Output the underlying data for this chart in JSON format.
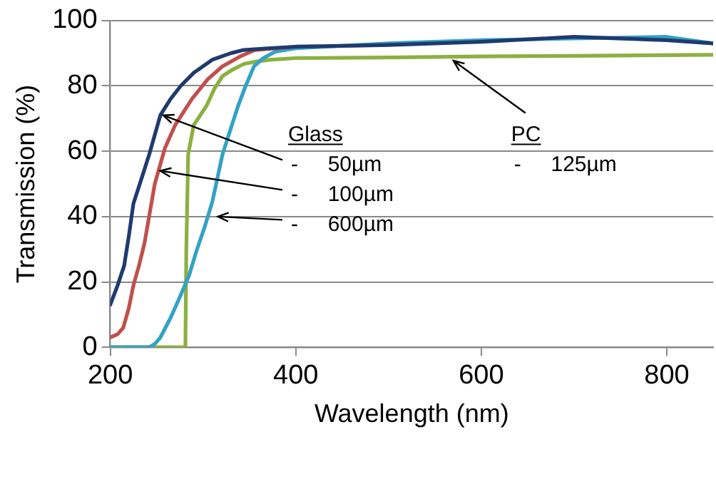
{
  "chart_data": {
    "type": "line",
    "xlabel": "Wavelength (nm)",
    "ylabel": "Transmission (%)",
    "xlim": [
      200,
      850
    ],
    "xticks": [
      200,
      400,
      600,
      800
    ],
    "ylim": [
      0,
      100
    ],
    "yticks": [
      0,
      20,
      40,
      60,
      80,
      100
    ],
    "grid": "y",
    "legend": false,
    "marker": "none",
    "line_style": "solid",
    "annotations": [
      "Glass",
      {
        "text": "-     50µm",
        "x": 254,
        "y": 71
      },
      {
        "text": "-     100µm",
        "x": 251,
        "y": 54
      },
      {
        "text": "-     600µm",
        "x": 313,
        "y": 40
      },
      {
        "text": "PC",
        "x": 567,
        "y": 89
      },
      "-     125µm"
    ],
    "series": [
      {
        "color": "#1f3a6e",
        "x": [
          200,
          208,
          215,
          220,
          225,
          233,
          242,
          254,
          265,
          276,
          290,
          310,
          330,
          344,
          370,
          400,
          500,
          600,
          700,
          800,
          850
        ],
        "values": [
          13,
          19,
          25,
          34,
          44,
          51,
          59,
          71,
          76,
          80,
          84,
          88,
          90,
          91,
          91.5,
          92,
          92.5,
          93.5,
          95,
          94,
          93
        ]
      },
      {
        "color": "#c0504d",
        "x": [
          200,
          208,
          214,
          220,
          225,
          231,
          237,
          248,
          259,
          270,
          288,
          305,
          321,
          340,
          356,
          380,
          400
        ],
        "values": [
          3,
          4,
          6,
          12,
          19,
          25,
          32,
          50,
          61,
          68,
          76,
          82,
          86,
          89,
          91,
          91.5,
          92
        ]
      },
      {
        "color": "#33a2c4",
        "x": [
          200,
          242,
          248,
          254,
          265,
          276,
          285,
          293,
          302,
          310,
          321,
          330,
          338,
          346,
          355,
          365,
          378,
          400,
          500,
          600,
          700,
          800,
          850
        ],
        "values": [
          0,
          0,
          1,
          3,
          9,
          16,
          22,
          29.5,
          37,
          44.5,
          59,
          67,
          74,
          80,
          86,
          88.5,
          90.5,
          91.5,
          93,
          94,
          94.5,
          95,
          93
        ]
      },
      {
        "color": "#8cb040",
        "x": [
          200,
          281,
          282,
          284,
          290,
          297,
          304,
          312,
          321,
          332,
          344,
          358,
          372,
          400,
          500,
          600,
          700,
          800,
          850
        ],
        "values": [
          0,
          0,
          30,
          59,
          68,
          71,
          74,
          79,
          83,
          85,
          86.7,
          87.5,
          88,
          88.5,
          88.7,
          89,
          89.2,
          89.4,
          89.5
        ]
      }
    ]
  }
}
